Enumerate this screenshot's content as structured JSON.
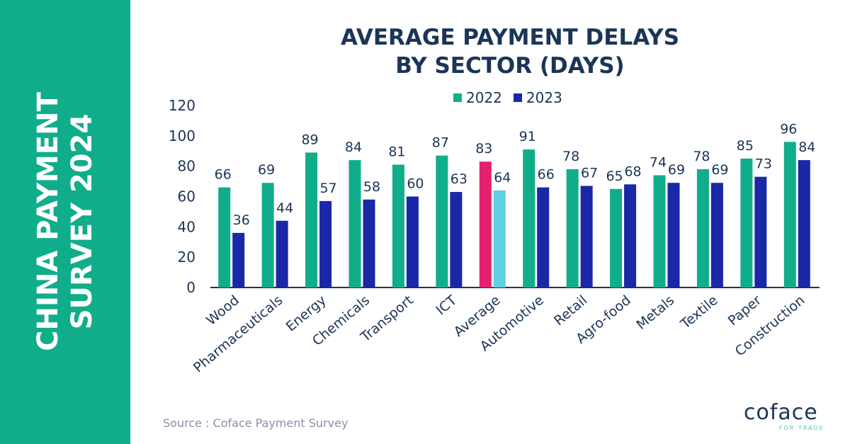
{
  "sidebar": {
    "title_line1": "CHINA PAYMENT",
    "title_line2": "SURVEY 2024"
  },
  "source": "Source : Coface Payment Survey",
  "logo": {
    "name": "coface",
    "tagline": "FOR TRADE"
  },
  "chart_data": {
    "type": "bar",
    "title_line1": "AVERAGE PAYMENT DELAYS",
    "title_line2": "BY SECTOR (DAYS)",
    "categories": [
      "Wood",
      "Pharmaceuticals",
      "Energy",
      "Chemicals",
      "Transport",
      "ICT",
      "Average",
      "Automotive",
      "Retail",
      "Agro-food",
      "Metals",
      "Textile",
      "Paper",
      "Construction"
    ],
    "series": [
      {
        "name": "2022",
        "color": "#10ad8b",
        "highlight_color": "#e5206f",
        "values": [
          66,
          69,
          89,
          84,
          81,
          87,
          83,
          91,
          78,
          65,
          74,
          78,
          85,
          96
        ]
      },
      {
        "name": "2023",
        "color": "#1a27a6",
        "highlight_color": "#5fd0e0",
        "values": [
          36,
          44,
          57,
          58,
          60,
          63,
          64,
          66,
          67,
          68,
          69,
          69,
          73,
          84
        ]
      }
    ],
    "highlight_category": "Average",
    "ylim": [
      0,
      120
    ],
    "yticks": [
      0,
      20,
      40,
      60,
      80,
      100,
      120
    ],
    "grid": false,
    "legend": "top"
  }
}
